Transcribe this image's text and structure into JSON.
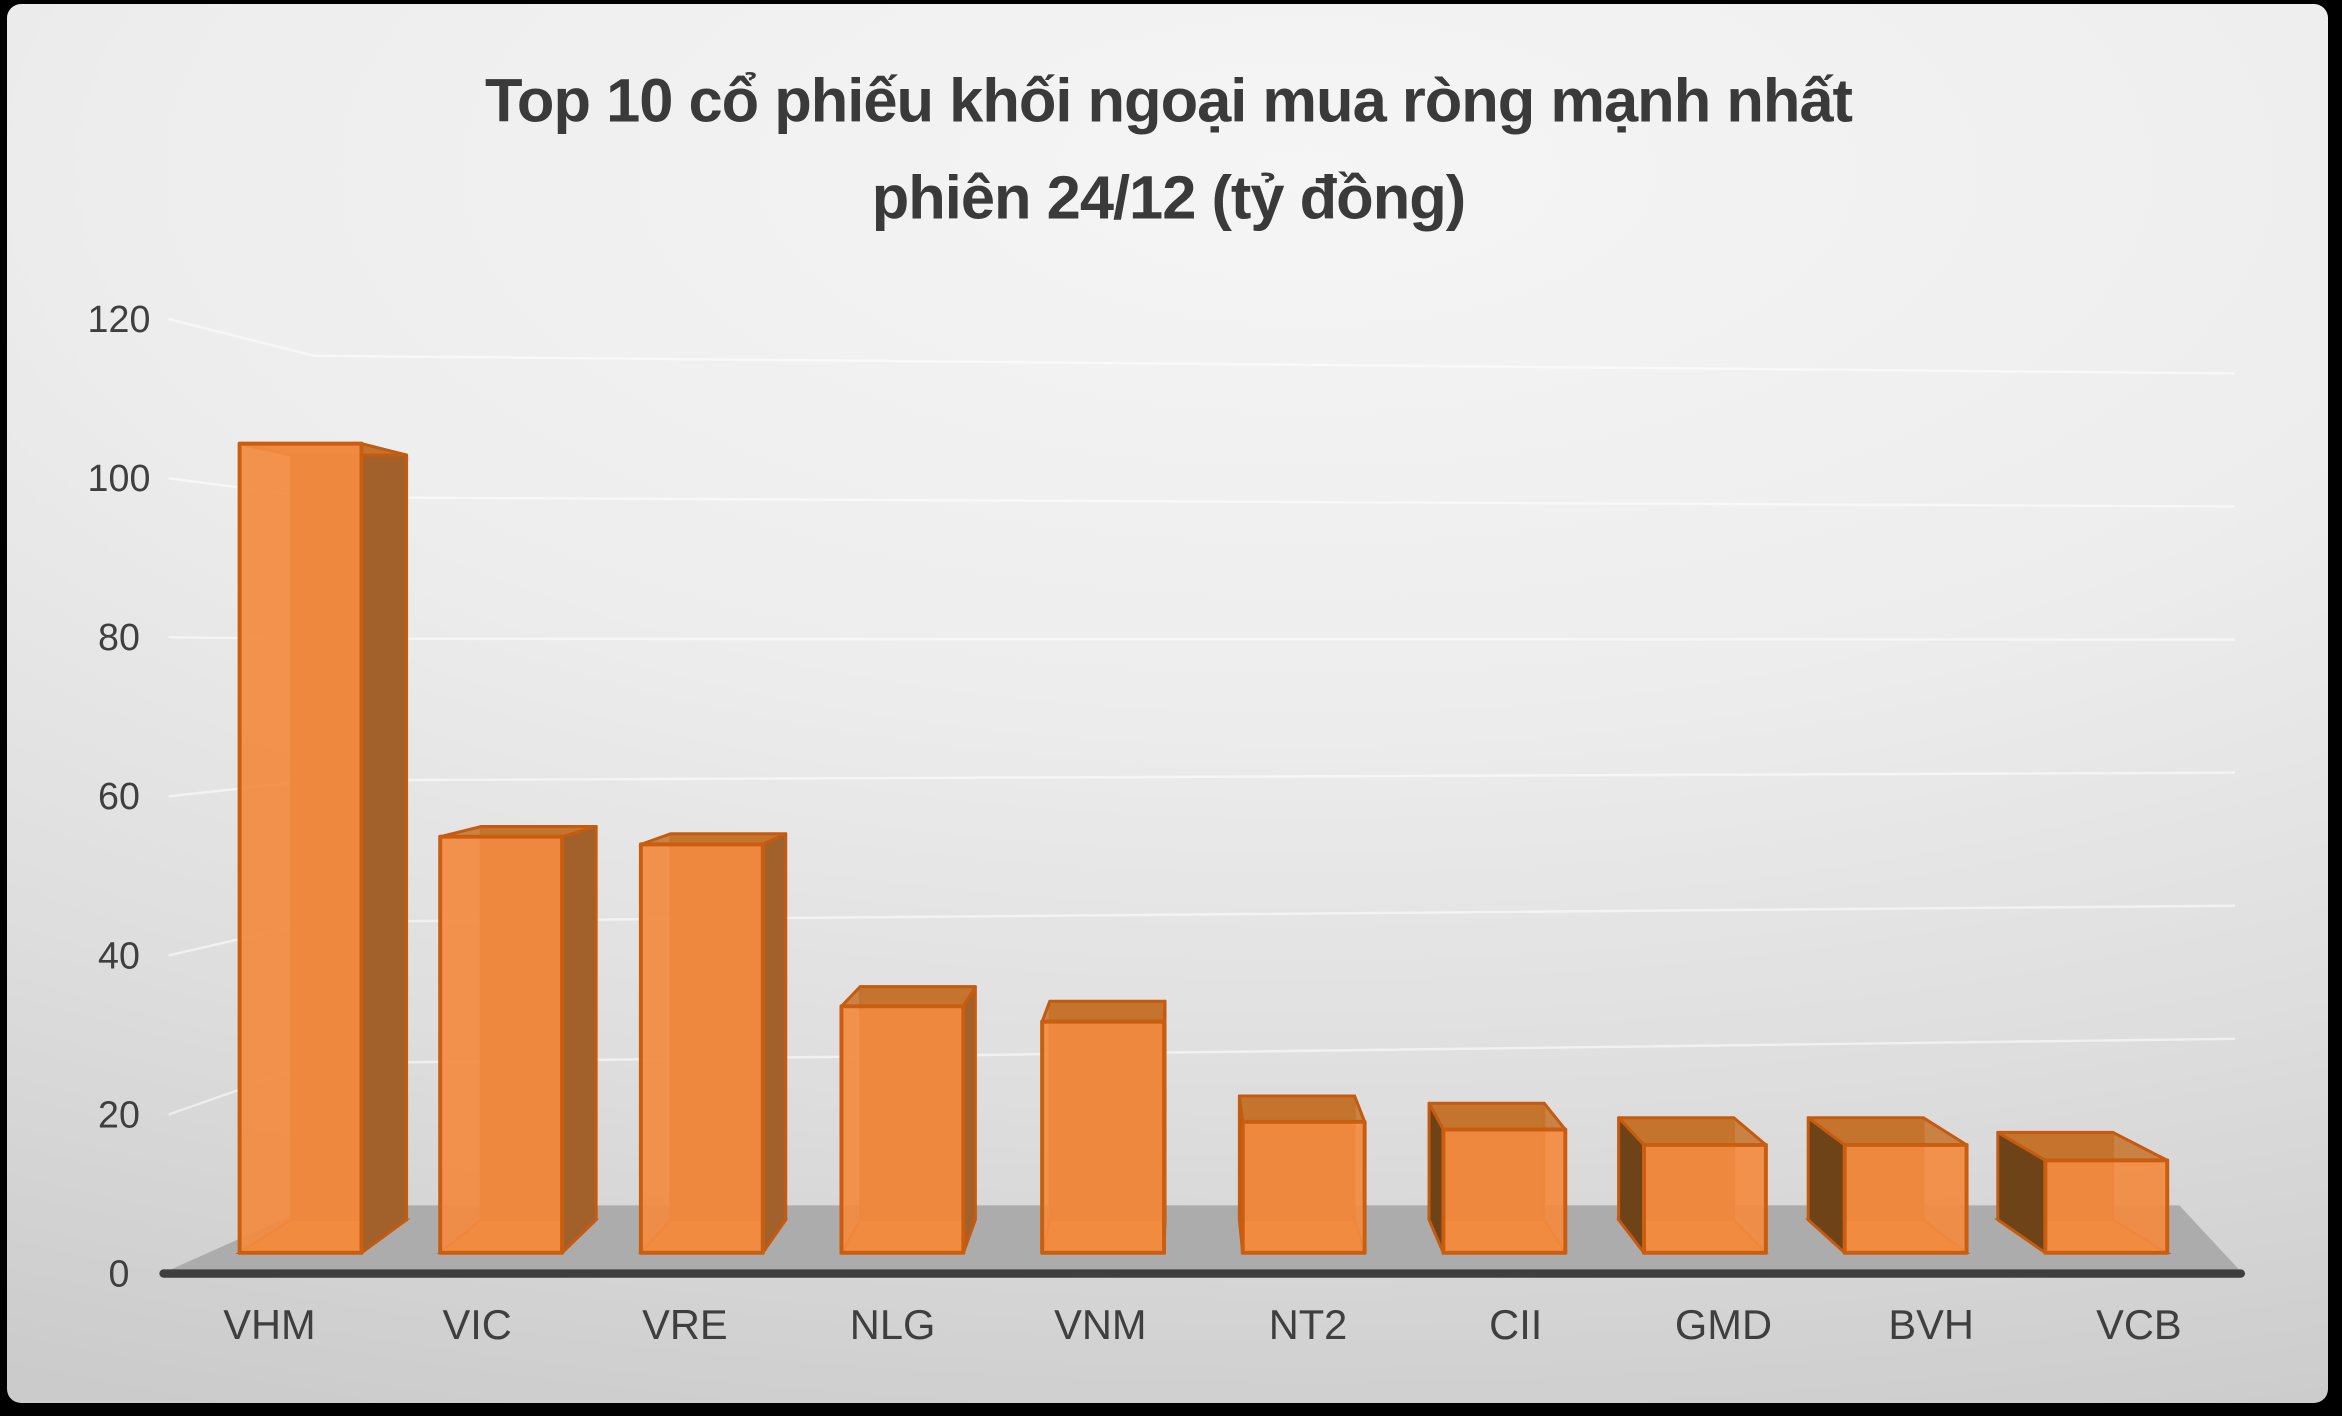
{
  "title": {
    "line1": "Top 10 cổ phiếu khối ngoại mua ròng mạnh nhất",
    "line2": "phiên 24/12 (tỷ đồng)"
  },
  "chart_data": {
    "type": "bar",
    "style": "3d-column-perspective",
    "title": "Top 10 cổ phiếu khối ngoại mua ròng mạnh nhất phiên 24/12 (tỷ đồng)",
    "unit": "tỷ đồng",
    "categories": [
      "VHM",
      "VIC",
      "VRE",
      "NLG",
      "VNM",
      "NT2",
      "CII",
      "GMD",
      "BVH",
      "VCB"
    ],
    "values": [
      105,
      54,
      53,
      32,
      30,
      17,
      16,
      14,
      14,
      12
    ],
    "xlabel": "",
    "ylabel": "",
    "ylim": [
      0,
      120
    ],
    "ytick_step": 20,
    "yticks": [
      0,
      20,
      40,
      60,
      80,
      100,
      120
    ],
    "grid": true,
    "legend": "none",
    "colors": {
      "bar_front": "rgba(242,139,65,0.93)",
      "bar_front_border": "#c95e10",
      "bar_top": "rgba(198,117,45,0.88)",
      "bar_side_right": "#a2602a",
      "bar_side_left": "#6e4317",
      "bar_back": "#b06a28",
      "bar_back_border": "rgba(185,88,20,0.85)",
      "bar_bottom": "#d98a43",
      "bar_edge": "#c55a11",
      "axis": "#3e3e3e",
      "floor": "#acacac",
      "gridline": "rgba(255,255,255,0.55)",
      "tick_label": "#3f3f3f",
      "category_label": "#3f3f3f",
      "title": "#3a3a3a"
    }
  }
}
